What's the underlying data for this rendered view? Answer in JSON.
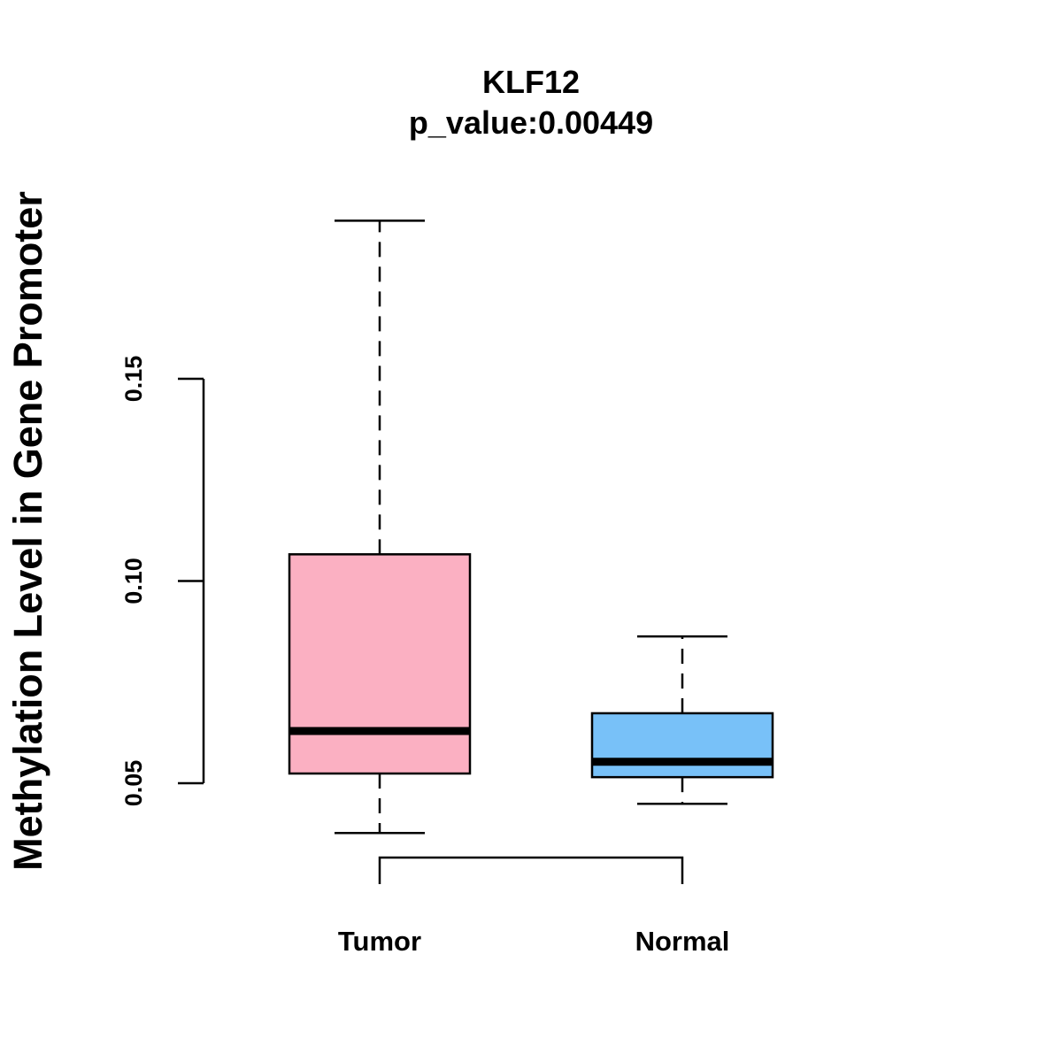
{
  "chart_data": {
    "type": "box",
    "title": "KLF12",
    "subtitle": "p_value:0.00449",
    "xlabel": "",
    "ylabel": "Methylation Level in Gene Promoter",
    "ylim": [
      0.05,
      0.15
    ],
    "yticks": [
      0.05,
      0.1,
      0.15
    ],
    "ytick_labels": [
      "0.05",
      "0.10",
      "0.15"
    ],
    "categories": [
      "Tumor",
      "Normal"
    ],
    "series": [
      {
        "name": "Tumor",
        "color": "#FBB0C2",
        "whisker_low": 0.0377,
        "q1": 0.0524,
        "median": 0.0629,
        "q3": 0.1066,
        "whisker_high": 0.1891
      },
      {
        "name": "Normal",
        "color": "#78C1F8",
        "whisker_low": 0.0449,
        "q1": 0.0515,
        "median": 0.0553,
        "q3": 0.0673,
        "whisker_high": 0.0863
      }
    ],
    "comparison_bracket": [
      "Tumor",
      "Normal"
    ],
    "grid": false,
    "legend": "none"
  }
}
